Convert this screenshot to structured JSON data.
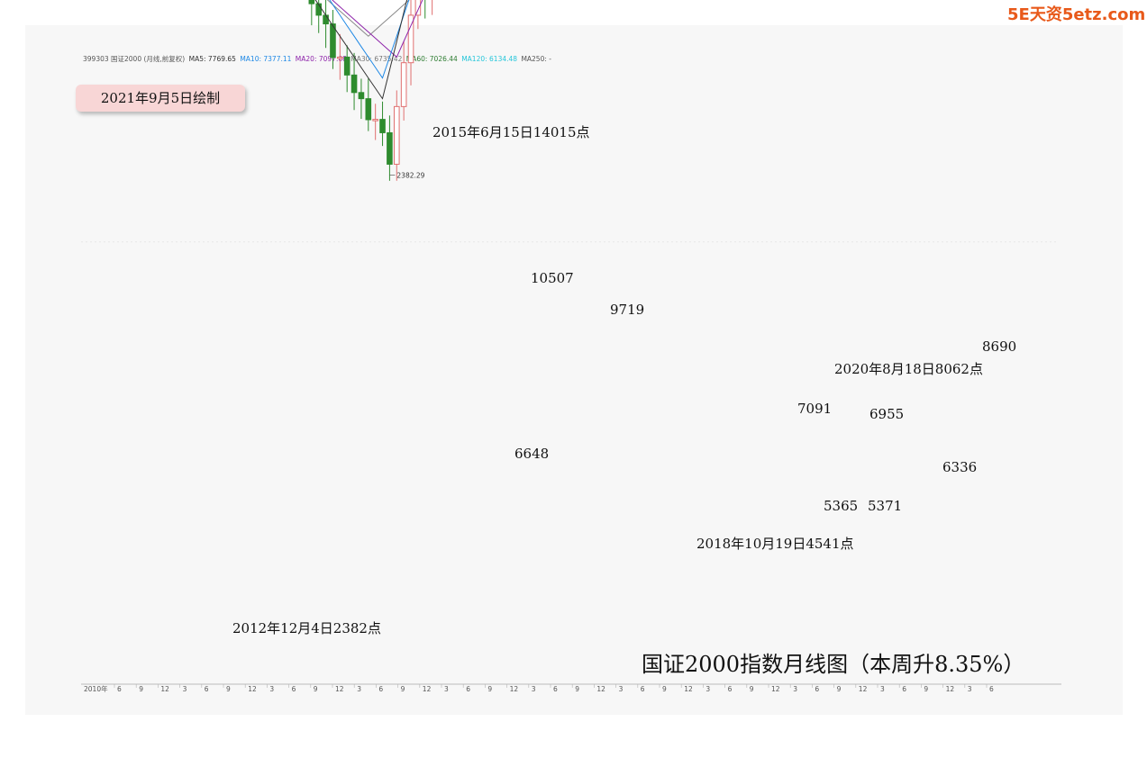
{
  "watermark": "5E天资5etz.com",
  "ma_legend": [
    {
      "text": "399303 国证2000 (月线,前复权)",
      "color": "#555555"
    },
    {
      "text": "MA5: 7769.65",
      "color": "#333333"
    },
    {
      "text": "MA10: 7377.11",
      "color": "#1e88e5"
    },
    {
      "text": "MA20: 7097.08",
      "color": "#8e24aa"
    },
    {
      "text": "MA30: 6735.42",
      "color": "#777777"
    },
    {
      "text": "MA60: 7026.44",
      "color": "#2e7d32"
    },
    {
      "text": "MA120: 6134.48",
      "color": "#26c6da"
    },
    {
      "text": "MA250: -",
      "color": "#555555"
    }
  ],
  "date_badge": "2021年9月5日绘制",
  "title_text": "国证2000指数月线图（本周升8.35%）",
  "colors": {
    "up": "#e07070",
    "down": "#2e8b2e",
    "latest": "#e01010",
    "grid": "#dddddd"
  },
  "chart_data": {
    "type": "candlestick",
    "ylim": [
      2000,
      15000
    ],
    "x_start_label": "2010年",
    "x_tick_labels": [
      "6",
      "9",
      "12",
      "3",
      "6",
      "9",
      "12",
      "3",
      "6",
      "9",
      "12",
      "3",
      "6",
      "9",
      "12",
      "3",
      "6",
      "9",
      "12",
      "3",
      "6",
      "9",
      "12",
      "3",
      "6",
      "9",
      "12",
      "3",
      "6",
      "9",
      "12",
      "3",
      "6",
      "9",
      "12",
      "3",
      "6",
      "9",
      "12",
      "3",
      "6"
    ],
    "annotations": [
      {
        "text": "2015年6月15日14015点",
        "value": 14015
      },
      {
        "text": "10507",
        "value": 10507
      },
      {
        "text": "9719",
        "value": 9719
      },
      {
        "text": "6648",
        "value": 6648
      },
      {
        "text": "7091",
        "value": 7091
      },
      {
        "text": "6955",
        "value": 6955
      },
      {
        "text": "2020年8月18日8062点",
        "value": 8062
      },
      {
        "text": "8690",
        "value": 8690
      },
      {
        "text": "6336",
        "value": 6336
      },
      {
        "text": "5365",
        "value": 5365
      },
      {
        "text": "5371",
        "value": 5371
      },
      {
        "text": "2018年10月19日4541点",
        "value": 4541
      },
      {
        "text": "2012年12月4日2382点",
        "value": 2382
      }
    ],
    "max_label": "14015.45",
    "min_label": "2382.29",
    "anchors": [
      [
        0,
        3900
      ],
      [
        3,
        4200
      ],
      [
        7,
        3600
      ],
      [
        9,
        4200
      ],
      [
        13,
        4900
      ],
      [
        16,
        4600
      ],
      [
        19,
        4400
      ],
      [
        22,
        4000
      ],
      [
        26,
        3600
      ],
      [
        28,
        3300
      ],
      [
        30,
        3500
      ],
      [
        33,
        3100
      ],
      [
        36,
        2900
      ],
      [
        39,
        2700
      ],
      [
        41,
        2600
      ],
      [
        43,
        2382
      ],
      [
        46,
        3100
      ],
      [
        48,
        3200
      ],
      [
        50,
        3900
      ],
      [
        52,
        4300
      ],
      [
        55,
        4600
      ],
      [
        58,
        5200
      ],
      [
        60,
        5800
      ],
      [
        62,
        6400
      ],
      [
        64,
        6900
      ],
      [
        65,
        8600
      ],
      [
        66,
        10200
      ],
      [
        67,
        13200
      ],
      [
        68,
        14015
      ],
      [
        69,
        8600
      ],
      [
        70,
        8100
      ],
      [
        71,
        7600
      ],
      [
        72,
        10507
      ],
      [
        73,
        7900
      ],
      [
        74,
        7100
      ],
      [
        75,
        8000
      ],
      [
        76,
        8700
      ],
      [
        78,
        9100
      ],
      [
        80,
        9719
      ],
      [
        82,
        9400
      ],
      [
        84,
        8800
      ],
      [
        86,
        8300
      ],
      [
        88,
        8500
      ],
      [
        90,
        7700
      ],
      [
        93,
        6700
      ],
      [
        96,
        6200
      ],
      [
        98,
        5200
      ],
      [
        100,
        4600
      ],
      [
        101,
        4541
      ],
      [
        102,
        5300
      ],
      [
        104,
        6700
      ],
      [
        106,
        6200
      ],
      [
        109,
        5900
      ],
      [
        111,
        5365
      ],
      [
        112,
        5371
      ],
      [
        114,
        6200
      ],
      [
        116,
        6400
      ],
      [
        117,
        6955
      ],
      [
        118,
        7800
      ],
      [
        119,
        8062
      ],
      [
        120,
        7600
      ],
      [
        122,
        7100
      ],
      [
        124,
        6336
      ],
      [
        126,
        6800
      ],
      [
        128,
        7500
      ],
      [
        129,
        8690
      ]
    ],
    "ma_series": [
      {
        "name": "MA60",
        "color": "#2e7d32",
        "start": 64,
        "anchors": [
          [
            64,
            3800
          ],
          [
            72,
            4800
          ],
          [
            80,
            5700
          ],
          [
            90,
            6700
          ],
          [
            100,
            7000
          ],
          [
            110,
            7100
          ],
          [
            118,
            7100
          ],
          [
            124,
            6900
          ],
          [
            129,
            6950
          ]
        ]
      },
      {
        "name": "MA120",
        "color": "#26c6da",
        "start": 110,
        "anchors": [
          [
            110,
            5400
          ],
          [
            118,
            5600
          ],
          [
            124,
            5850
          ],
          [
            129,
            6150
          ]
        ]
      },
      {
        "name": "MA30",
        "color": "#888888",
        "start": 20,
        "anchors": [
          [
            20,
            3600
          ],
          [
            30,
            3300
          ],
          [
            40,
            3000
          ],
          [
            50,
            3300
          ],
          [
            60,
            4200
          ],
          [
            66,
            5800
          ],
          [
            70,
            6700
          ],
          [
            76,
            7600
          ],
          [
            82,
            8400
          ],
          [
            90,
            8100
          ],
          [
            100,
            7200
          ],
          [
            108,
            6200
          ],
          [
            114,
            5900
          ],
          [
            120,
            6200
          ],
          [
            124,
            6300
          ],
          [
            129,
            6800
          ]
        ]
      },
      {
        "name": "MA20",
        "color": "#8e24aa",
        "start": 16,
        "anchors": [
          [
            16,
            4100
          ],
          [
            24,
            3800
          ],
          [
            34,
            3200
          ],
          [
            44,
            2900
          ],
          [
            52,
            3500
          ],
          [
            60,
            4700
          ],
          [
            66,
            6300
          ],
          [
            70,
            7500
          ],
          [
            78,
            8700
          ],
          [
            86,
            8700
          ],
          [
            94,
            7900
          ],
          [
            100,
            6800
          ],
          [
            108,
            5700
          ],
          [
            114,
            5900
          ],
          [
            118,
            6400
          ],
          [
            124,
            6600
          ],
          [
            129,
            7100
          ]
        ]
      },
      {
        "name": "MA10",
        "color": "#1e88e5",
        "start": 10,
        "anchors": [
          [
            10,
            4000
          ],
          [
            20,
            4200
          ],
          [
            30,
            3400
          ],
          [
            42,
            2800
          ],
          [
            50,
            3600
          ],
          [
            58,
            4700
          ],
          [
            64,
            6000
          ],
          [
            67,
            8200
          ],
          [
            69,
            9600
          ],
          [
            72,
            8600
          ],
          [
            76,
            8400
          ],
          [
            80,
            9200
          ],
          [
            86,
            8600
          ],
          [
            92,
            7400
          ],
          [
            100,
            5900
          ],
          [
            104,
            5700
          ],
          [
            110,
            5700
          ],
          [
            116,
            6200
          ],
          [
            120,
            7100
          ],
          [
            124,
            6900
          ],
          [
            129,
            7400
          ]
        ]
      },
      {
        "name": "MA5",
        "color": "#333333",
        "start": 5,
        "anchors": [
          [
            5,
            4000
          ],
          [
            14,
            4600
          ],
          [
            22,
            4000
          ],
          [
            32,
            3200
          ],
          [
            42,
            2700
          ],
          [
            50,
            3800
          ],
          [
            58,
            5000
          ],
          [
            64,
            6600
          ],
          [
            67,
            9700
          ],
          [
            69,
            10600
          ],
          [
            71,
            8900
          ],
          [
            74,
            8500
          ],
          [
            78,
            8900
          ],
          [
            82,
            9400
          ],
          [
            88,
            8400
          ],
          [
            94,
            7100
          ],
          [
            100,
            5400
          ],
          [
            103,
            5900
          ],
          [
            108,
            5800
          ],
          [
            112,
            5700
          ],
          [
            116,
            6400
          ],
          [
            119,
            7500
          ],
          [
            122,
            7300
          ],
          [
            125,
            6900
          ],
          [
            129,
            7800
          ]
        ]
      }
    ]
  }
}
